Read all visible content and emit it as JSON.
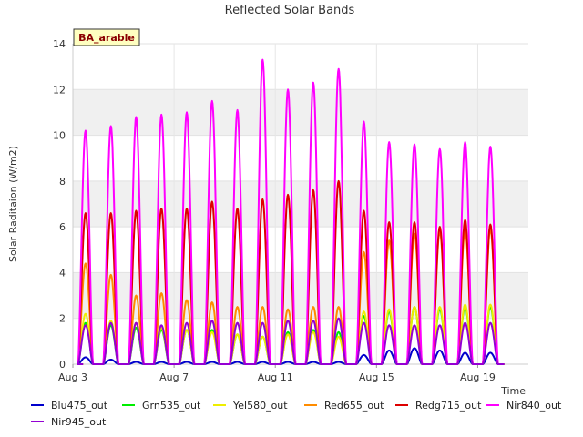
{
  "chart_data": {
    "type": "line",
    "title": "Reflected Solar Bands",
    "xlabel": "Time",
    "ylabel": "Solar Raditaion (W/m2)",
    "ylim": [
      0,
      14
    ],
    "yticks": [
      0,
      2,
      4,
      6,
      8,
      10,
      12,
      14
    ],
    "xticks": [
      "Aug 3",
      "Aug 7",
      "Aug 11",
      "Aug 15",
      "Aug 19"
    ],
    "x_range_days": [
      3,
      21
    ],
    "annotation": "BA_arable",
    "grid": "horizontal bands",
    "legend_position": "bottom",
    "day_start": 3.4,
    "daily_peaks_day": [
      3.5,
      4.5,
      5.5,
      6.5,
      7.5,
      8.5,
      9.5,
      10.5,
      11.5,
      12.5,
      13.5,
      14.5,
      15.5,
      16.5,
      17.5,
      18.5,
      19.5
    ],
    "series": [
      {
        "name": "Blu475_out",
        "color": "#0000cc",
        "peaks": [
          0.3,
          0.2,
          0.1,
          0.1,
          0.1,
          0.1,
          0.1,
          0.1,
          0.1,
          0.1,
          0.1,
          0.4,
          0.6,
          0.7,
          0.6,
          0.5,
          0.5
        ]
      },
      {
        "name": "Grn535_out",
        "color": "#00ee00",
        "peaks": [
          1.8,
          1.7,
          1.6,
          1.5,
          1.5,
          1.5,
          1.3,
          1.2,
          1.4,
          1.5,
          1.4,
          2.1,
          2.3,
          2.5,
          2.4,
          2.5,
          2.5
        ]
      },
      {
        "name": "Yel580_out",
        "color": "#eeee00",
        "peaks": [
          2.2,
          1.9,
          1.8,
          1.6,
          1.5,
          1.4,
          1.3,
          1.2,
          1.3,
          1.4,
          1.2,
          2.3,
          2.4,
          2.5,
          2.5,
          2.6,
          2.6
        ]
      },
      {
        "name": "Red655_out",
        "color": "#ff8c00",
        "peaks": [
          4.4,
          3.9,
          3.0,
          3.1,
          2.8,
          2.7,
          2.5,
          2.5,
          2.4,
          2.5,
          2.5,
          4.9,
          5.4,
          5.7,
          5.8,
          5.9,
          5.9
        ]
      },
      {
        "name": "Redg715_out",
        "color": "#dd0000",
        "peaks": [
          6.6,
          6.6,
          6.7,
          6.8,
          6.8,
          7.1,
          6.8,
          7.2,
          7.4,
          7.6,
          8.0,
          6.7,
          6.2,
          6.2,
          6.0,
          6.3,
          6.1
        ]
      },
      {
        "name": "Nir840_out",
        "color": "#ff00ff",
        "peaks": [
          10.2,
          10.4,
          10.8,
          10.9,
          11.0,
          11.5,
          11.1,
          13.3,
          12.0,
          12.3,
          12.9,
          10.6,
          9.7,
          9.6,
          9.4,
          9.7,
          9.5
        ]
      },
      {
        "name": "Nir945_out",
        "color": "#9400d3",
        "peaks": [
          1.7,
          1.8,
          1.8,
          1.7,
          1.8,
          1.9,
          1.8,
          1.8,
          1.9,
          1.9,
          2.0,
          1.8,
          1.7,
          1.7,
          1.7,
          1.8,
          1.8
        ]
      }
    ]
  }
}
